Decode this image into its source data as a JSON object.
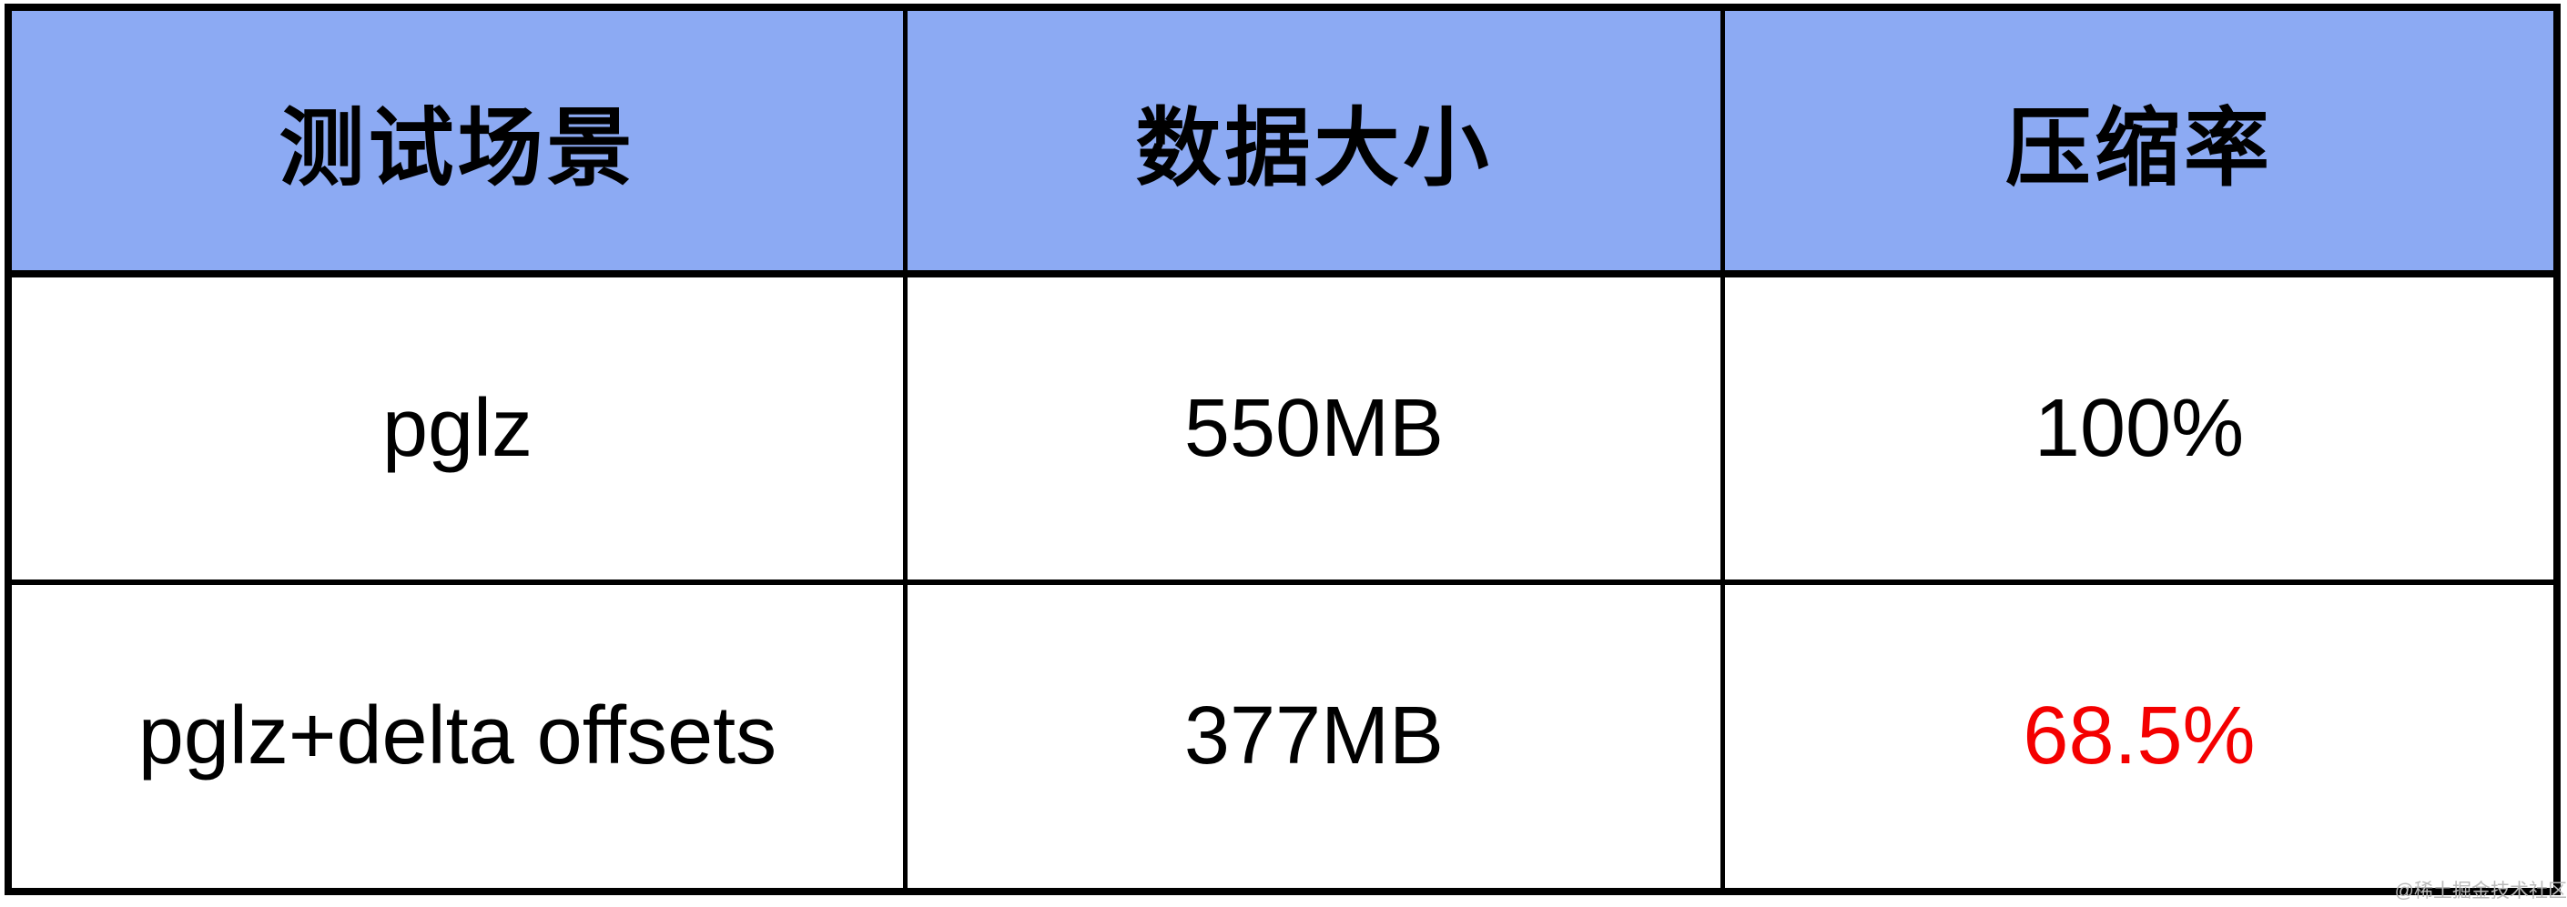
{
  "chart_data": {
    "type": "table",
    "columns": [
      "测试场景",
      "数据大小",
      "压缩率"
    ],
    "rows": [
      [
        "pglz",
        "550MB",
        "100%"
      ],
      [
        "pglz+delta offsets",
        "377MB",
        "68.5%"
      ]
    ],
    "highlighted_value": "68.5%"
  },
  "styles": {
    "header_bg": "#8caaf3",
    "border_color": "#000000",
    "highlight_color": "#f40000",
    "watermark_color": "#b9b9b9"
  },
  "watermark": {
    "text": "@稀土掘金技术社区"
  }
}
